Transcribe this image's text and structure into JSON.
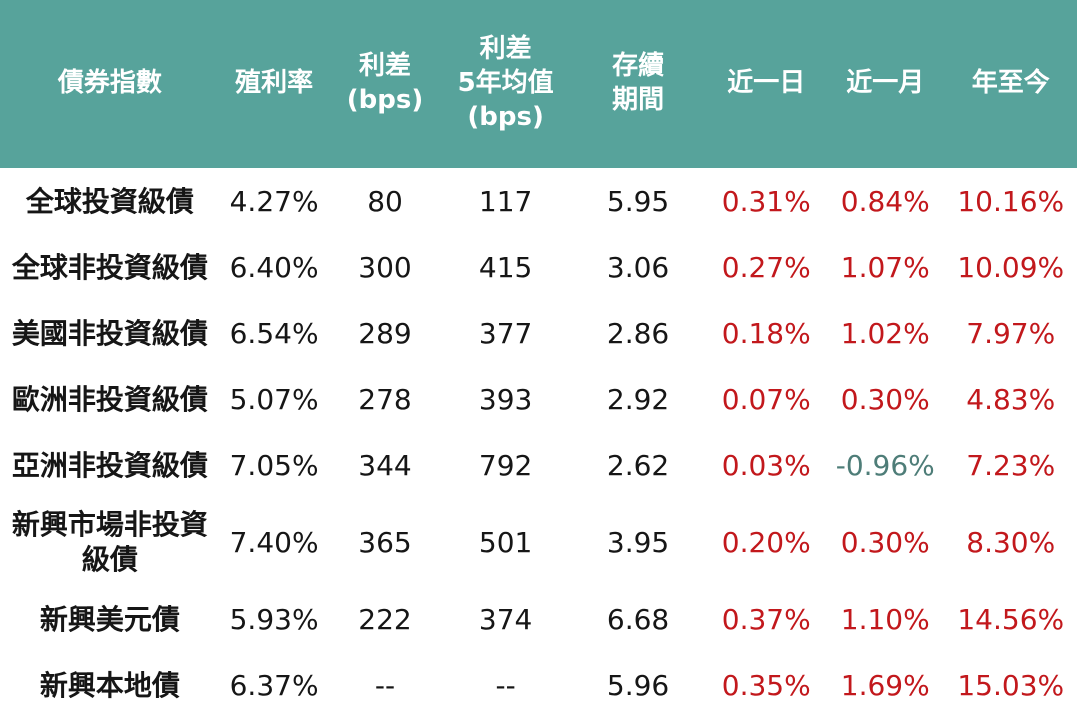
{
  "colors": {
    "header_bg": "#57a39b",
    "header_text": "#ffffff",
    "body_text": "#161616",
    "positive_change": "#c2181c",
    "negative_change": "#4e7d78"
  },
  "table": {
    "columns": [
      {
        "key": "bond-index",
        "label": "債券指數",
        "width_pct": 20.4
      },
      {
        "key": "yield",
        "label": "殖利率",
        "width_pct": 10.1
      },
      {
        "key": "spread-bps",
        "label": "利差\n(bps)",
        "width_pct": 10.5
      },
      {
        "key": "spread-5y-avg",
        "label": "利差\n5年均值\n(bps)",
        "width_pct": 11.9
      },
      {
        "key": "duration",
        "label": "存續\n期間",
        "width_pct": 12.7
      },
      {
        "key": "change-1d",
        "label": "近一日",
        "width_pct": 11.1
      },
      {
        "key": "change-1m",
        "label": "近一月",
        "width_pct": 11.0
      },
      {
        "key": "change-ytd",
        "label": "年至今",
        "width_pct": 12.3
      }
    ],
    "rows": [
      {
        "cells": [
          "全球投資級債",
          "4.27%",
          "80",
          "117",
          "5.95",
          "0.31%",
          "0.84%",
          "10.16%"
        ],
        "change_colors": [
          "positive",
          "positive",
          "positive"
        ],
        "tall": false
      },
      {
        "cells": [
          "全球非投資級債",
          "6.40%",
          "300",
          "415",
          "3.06",
          "0.27%",
          "1.07%",
          "10.09%"
        ],
        "change_colors": [
          "positive",
          "positive",
          "positive"
        ],
        "tall": false
      },
      {
        "cells": [
          "美國非投資級債",
          "6.54%",
          "289",
          "377",
          "2.86",
          "0.18%",
          "1.02%",
          "7.97%"
        ],
        "change_colors": [
          "positive",
          "positive",
          "positive"
        ],
        "tall": false
      },
      {
        "cells": [
          "歐洲非投資級債",
          "5.07%",
          "278",
          "393",
          "2.92",
          "0.07%",
          "0.30%",
          "4.83%"
        ],
        "change_colors": [
          "positive",
          "positive",
          "positive"
        ],
        "tall": false
      },
      {
        "cells": [
          "亞洲非投資級債",
          "7.05%",
          "344",
          "792",
          "2.62",
          "0.03%",
          "-0.96%",
          "7.23%"
        ],
        "change_colors": [
          "positive",
          "negative",
          "positive"
        ],
        "tall": false
      },
      {
        "cells": [
          "新興市場非投資\n級債",
          "7.40%",
          "365",
          "501",
          "3.95",
          "0.20%",
          "0.30%",
          "8.30%"
        ],
        "change_colors": [
          "positive",
          "positive",
          "positive"
        ],
        "tall": true
      },
      {
        "cells": [
          "新興美元債",
          "5.93%",
          "222",
          "374",
          "6.68",
          "0.37%",
          "1.10%",
          "14.56%"
        ],
        "change_colors": [
          "positive",
          "positive",
          "positive"
        ],
        "tall": false
      },
      {
        "cells": [
          "新興本地債",
          "6.37%",
          "--",
          "--",
          "5.96",
          "0.35%",
          "1.69%",
          "15.03%"
        ],
        "change_colors": [
          "positive",
          "positive",
          "positive"
        ],
        "tall": false
      }
    ]
  }
}
